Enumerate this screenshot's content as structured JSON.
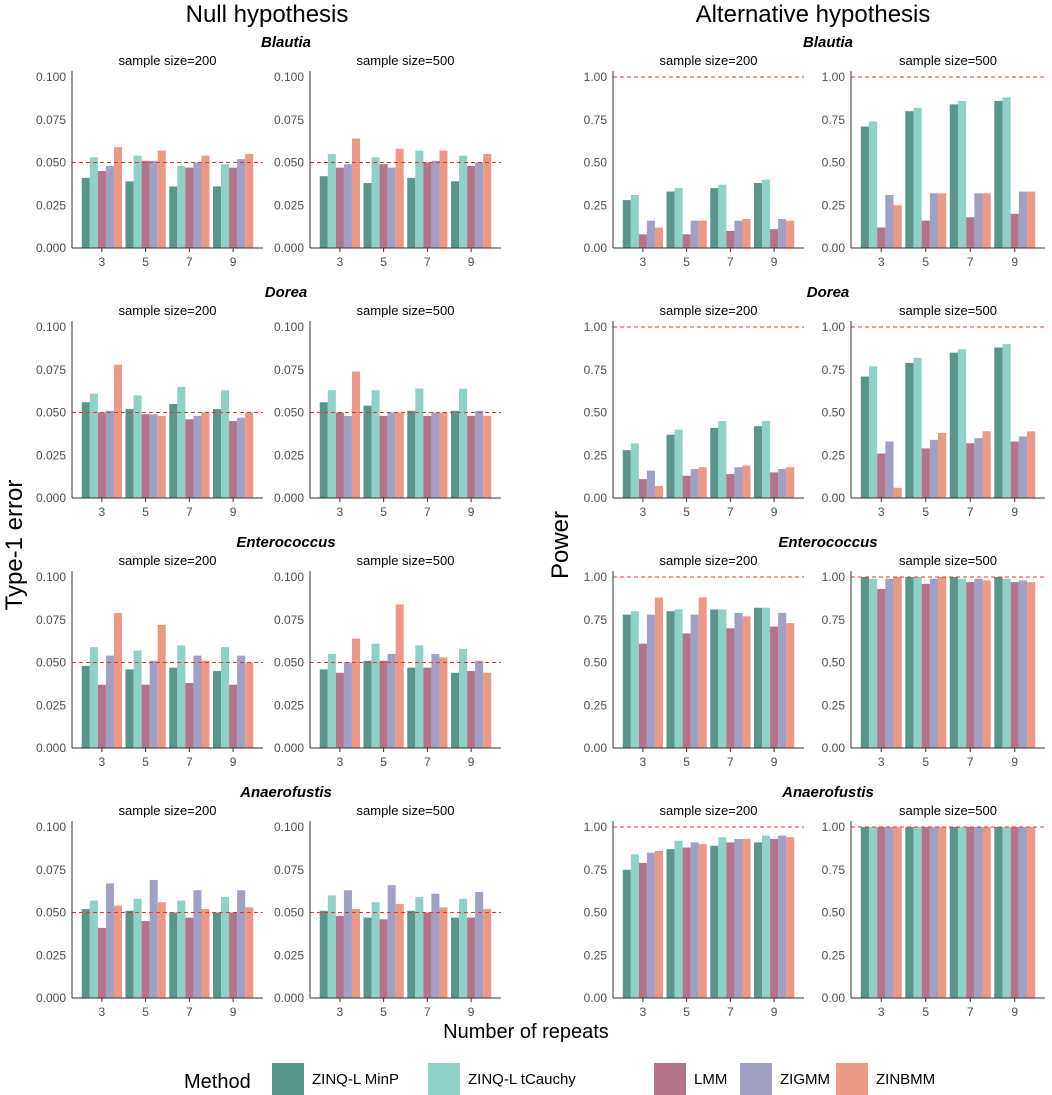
{
  "titles": {
    "null": "Null hypothesis",
    "alt": "Alternative hypothesis"
  },
  "y_labels": {
    "null": "Type-1 error",
    "alt": "Power"
  },
  "x_label": "Number of repeats",
  "legend": {
    "title": "Method",
    "items": [
      {
        "name": "ZINQ-L MinP",
        "color": "#5a958b"
      },
      {
        "name": "ZINQ-L tCauchy",
        "color": "#8fd1c6"
      },
      {
        "name": "LMM",
        "color": "#b37388"
      },
      {
        "name": "ZIGMM",
        "color": "#a09fc4"
      },
      {
        "name": "ZINBMM",
        "color": "#ec9887"
      }
    ]
  },
  "chart_data": {
    "type": "bar",
    "categories": [
      "3",
      "5",
      "7",
      "9"
    ],
    "methods": [
      "ZINQ-L MinP",
      "ZINQ-L tCauchy",
      "LMM",
      "ZIGMM",
      "ZINBMM"
    ],
    "panel_titles": [
      "sample size=200",
      "sample size=500"
    ],
    "null": {
      "ylim": [
        0,
        0.1
      ],
      "yticks": [
        "0.000",
        "0.025",
        "0.050",
        "0.075",
        "0.100"
      ],
      "tick_values": [
        0,
        0.025,
        0.05,
        0.075,
        0.1
      ],
      "reference_line": 0.05,
      "rows": [
        {
          "genus": "Blautia",
          "panels": [
            [
              [
                0.041,
                0.053,
                0.045,
                0.048,
                0.059
              ],
              [
                0.039,
                0.054,
                0.051,
                0.051,
                0.057
              ],
              [
                0.036,
                0.048,
                0.047,
                0.05,
                0.054
              ],
              [
                0.036,
                0.049,
                0.047,
                0.052,
                0.055
              ]
            ],
            [
              [
                0.042,
                0.055,
                0.047,
                0.049,
                0.064
              ],
              [
                0.038,
                0.053,
                0.049,
                0.047,
                0.058
              ],
              [
                0.041,
                0.057,
                0.05,
                0.051,
                0.057
              ],
              [
                0.039,
                0.054,
                0.048,
                0.05,
                0.055
              ]
            ]
          ]
        },
        {
          "genus": "Dorea",
          "panels": [
            [
              [
                0.056,
                0.061,
                0.05,
                0.051,
                0.078
              ],
              [
                0.052,
                0.06,
                0.049,
                0.049,
                0.048
              ],
              [
                0.055,
                0.065,
                0.046,
                0.048,
                0.05
              ],
              [
                0.052,
                0.063,
                0.045,
                0.047,
                0.05
              ]
            ],
            [
              [
                0.056,
                0.063,
                0.05,
                0.048,
                0.074
              ],
              [
                0.054,
                0.063,
                0.048,
                0.05,
                0.05
              ],
              [
                0.051,
                0.064,
                0.048,
                0.05,
                0.05
              ],
              [
                0.051,
                0.064,
                0.048,
                0.051,
                0.048
              ]
            ]
          ]
        },
        {
          "genus": "Enterococcus",
          "panels": [
            [
              [
                0.048,
                0.059,
                0.037,
                0.054,
                0.079
              ],
              [
                0.046,
                0.057,
                0.037,
                0.051,
                0.072
              ],
              [
                0.047,
                0.06,
                0.038,
                0.054,
                0.051
              ],
              [
                0.045,
                0.059,
                0.037,
                0.054,
                0.05
              ]
            ],
            [
              [
                0.046,
                0.055,
                0.044,
                0.05,
                0.064
              ],
              [
                0.051,
                0.061,
                0.051,
                0.055,
                0.084
              ],
              [
                0.047,
                0.06,
                0.047,
                0.055,
                0.053
              ],
              [
                0.044,
                0.058,
                0.045,
                0.051,
                0.044
              ]
            ]
          ]
        },
        {
          "genus": "Anaerofustis",
          "panels": [
            [
              [
                0.052,
                0.057,
                0.041,
                0.067,
                0.054
              ],
              [
                0.051,
                0.058,
                0.045,
                0.069,
                0.056
              ],
              [
                0.05,
                0.057,
                0.047,
                0.063,
                0.052
              ],
              [
                0.05,
                0.059,
                0.05,
                0.063,
                0.053
              ]
            ],
            [
              [
                0.051,
                0.06,
                0.048,
                0.063,
                0.052
              ],
              [
                0.047,
                0.056,
                0.046,
                0.066,
                0.055
              ],
              [
                0.051,
                0.059,
                0.05,
                0.061,
                0.053
              ],
              [
                0.047,
                0.058,
                0.047,
                0.062,
                0.052
              ]
            ]
          ]
        }
      ]
    },
    "alt": {
      "ylim": [
        0,
        1.0
      ],
      "yticks": [
        "0.00",
        "0.25",
        "0.50",
        "0.75",
        "1.00"
      ],
      "tick_values": [
        0,
        0.25,
        0.5,
        0.75,
        1.0
      ],
      "reference_line": 1.0,
      "rows": [
        {
          "genus": "Blautia",
          "panels": [
            [
              [
                0.28,
                0.31,
                0.08,
                0.16,
                0.12
              ],
              [
                0.33,
                0.35,
                0.08,
                0.16,
                0.16
              ],
              [
                0.35,
                0.37,
                0.1,
                0.16,
                0.17
              ],
              [
                0.38,
                0.4,
                0.11,
                0.17,
                0.16
              ]
            ],
            [
              [
                0.71,
                0.74,
                0.12,
                0.31,
                0.25
              ],
              [
                0.8,
                0.82,
                0.16,
                0.32,
                0.32
              ],
              [
                0.84,
                0.86,
                0.18,
                0.32,
                0.32
              ],
              [
                0.86,
                0.88,
                0.2,
                0.33,
                0.33
              ]
            ]
          ]
        },
        {
          "genus": "Dorea",
          "panels": [
            [
              [
                0.28,
                0.32,
                0.11,
                0.16,
                0.07
              ],
              [
                0.37,
                0.4,
                0.13,
                0.17,
                0.18
              ],
              [
                0.41,
                0.45,
                0.14,
                0.18,
                0.19
              ],
              [
                0.42,
                0.45,
                0.15,
                0.17,
                0.18
              ]
            ],
            [
              [
                0.71,
                0.77,
                0.26,
                0.33,
                0.06
              ],
              [
                0.79,
                0.82,
                0.29,
                0.34,
                0.38
              ],
              [
                0.85,
                0.87,
                0.32,
                0.35,
                0.39
              ],
              [
                0.88,
                0.9,
                0.33,
                0.36,
                0.39
              ]
            ]
          ]
        },
        {
          "genus": "Enterococcus",
          "panels": [
            [
              [
                0.78,
                0.8,
                0.61,
                0.78,
                0.88
              ],
              [
                0.8,
                0.81,
                0.67,
                0.78,
                0.88
              ],
              [
                0.81,
                0.81,
                0.7,
                0.79,
                0.77
              ],
              [
                0.82,
                0.82,
                0.71,
                0.79,
                0.73
              ]
            ],
            [
              [
                1.0,
                0.99,
                0.93,
                0.99,
                1.0
              ],
              [
                1.0,
                1.0,
                0.96,
                0.99,
                1.0
              ],
              [
                1.0,
                0.99,
                0.97,
                0.99,
                0.98
              ],
              [
                1.0,
                0.99,
                0.97,
                0.98,
                0.97
              ]
            ]
          ]
        },
        {
          "genus": "Anaerofustis",
          "panels": [
            [
              [
                0.75,
                0.84,
                0.79,
                0.85,
                0.86
              ],
              [
                0.87,
                0.92,
                0.88,
                0.91,
                0.9
              ],
              [
                0.89,
                0.94,
                0.91,
                0.93,
                0.93
              ],
              [
                0.91,
                0.95,
                0.93,
                0.95,
                0.94
              ]
            ],
            [
              [
                1.0,
                1.0,
                1.0,
                1.0,
                1.0
              ],
              [
                1.0,
                1.0,
                1.0,
                1.0,
                1.0
              ],
              [
                1.0,
                1.0,
                1.0,
                1.0,
                1.0
              ],
              [
                1.0,
                1.0,
                1.0,
                1.0,
                1.0
              ]
            ]
          ]
        }
      ]
    }
  }
}
